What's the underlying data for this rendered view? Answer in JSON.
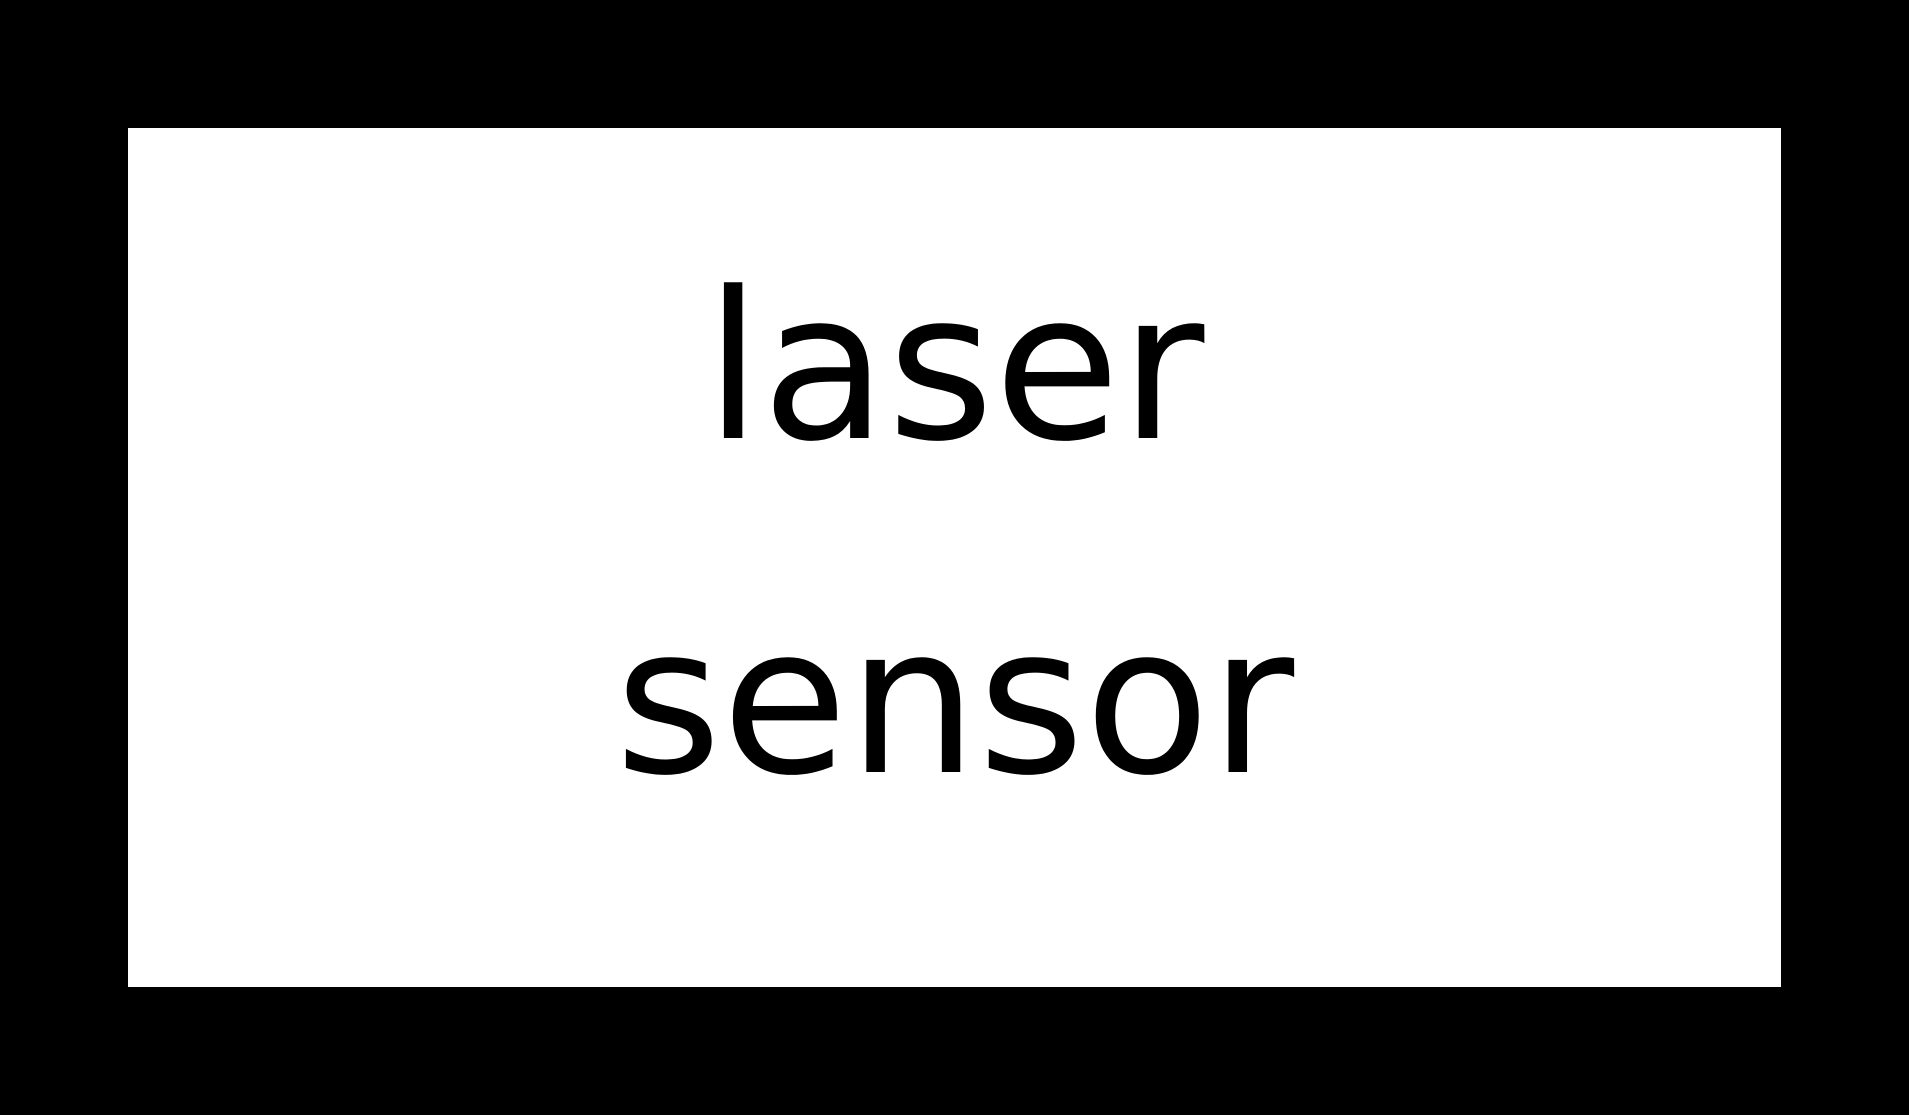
{
  "colors": {
    "background": "#000000",
    "box_fill": "#ffffff",
    "text": "#000000"
  },
  "block": {
    "label_line_1": "laser",
    "label_line_2": "sensor"
  }
}
